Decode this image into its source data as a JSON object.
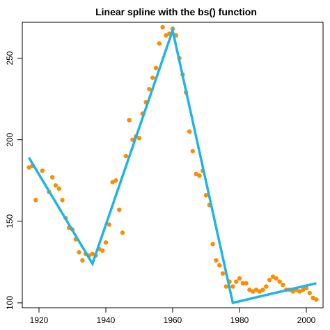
{
  "chart_data": {
    "type": "scatter",
    "title": "Linear spline with the bs() function",
    "xlabel": "",
    "ylabel": "",
    "xlim": [
      1915,
      2005
    ],
    "ylim": [
      97,
      272
    ],
    "x_ticks": [
      1920,
      1940,
      1960,
      1980,
      2000
    ],
    "y_ticks": [
      100,
      150,
      200,
      250
    ],
    "grid": false,
    "series": [
      {
        "kind": "points",
        "color": "#FF8C00",
        "points": [
          [
            1917,
            183
          ],
          [
            1918,
            184
          ],
          [
            1919,
            163
          ],
          [
            1921,
            181
          ],
          [
            1923,
            168
          ],
          [
            1924,
            177
          ],
          [
            1925,
            172
          ],
          [
            1926,
            170
          ],
          [
            1927,
            163
          ],
          [
            1928,
            152
          ],
          [
            1929,
            146
          ],
          [
            1930,
            145
          ],
          [
            1931,
            139
          ],
          [
            1932,
            131
          ],
          [
            1933,
            126
          ],
          [
            1934,
            130
          ],
          [
            1935,
            129
          ],
          [
            1936,
            130
          ],
          [
            1937,
            129
          ],
          [
            1938,
            133
          ],
          [
            1939,
            132
          ],
          [
            1940,
            137
          ],
          [
            1941,
            148
          ],
          [
            1942,
            174
          ],
          [
            1943,
            175
          ],
          [
            1944,
            157
          ],
          [
            1945,
            143
          ],
          [
            1946,
            190
          ],
          [
            1947,
            212
          ],
          [
            1948,
            200
          ],
          [
            1949,
            202
          ],
          [
            1950,
            201
          ],
          [
            1951,
            216
          ],
          [
            1952,
            223
          ],
          [
            1953,
            231
          ],
          [
            1954,
            238
          ],
          [
            1955,
            244
          ],
          [
            1956,
            259
          ],
          [
            1957,
            269
          ],
          [
            1958,
            264
          ],
          [
            1959,
            265
          ],
          [
            1960,
            268
          ],
          [
            1961,
            264
          ],
          [
            1962,
            250
          ],
          [
            1963,
            240
          ],
          [
            1964,
            229
          ],
          [
            1965,
            205
          ],
          [
            1966,
            193
          ],
          [
            1967,
            179
          ],
          [
            1968,
            178
          ],
          [
            1969,
            181
          ],
          [
            1970,
            166
          ],
          [
            1971,
            160
          ],
          [
            1972,
            136
          ],
          [
            1973,
            126
          ],
          [
            1974,
            123
          ],
          [
            1975,
            118
          ],
          [
            1976,
            110
          ],
          [
            1977,
            113
          ],
          [
            1978,
            110
          ],
          [
            1979,
            113
          ],
          [
            1980,
            115
          ],
          [
            1981,
            112
          ],
          [
            1982,
            112
          ],
          [
            1983,
            108
          ],
          [
            1984,
            107
          ],
          [
            1985,
            108
          ],
          [
            1986,
            107
          ],
          [
            1987,
            108
          ],
          [
            1988,
            110
          ],
          [
            1989,
            114
          ],
          [
            1990,
            116
          ],
          [
            1991,
            115
          ],
          [
            1992,
            113
          ],
          [
            1993,
            111
          ],
          [
            1994,
            108
          ],
          [
            1995,
            108
          ],
          [
            1996,
            107
          ],
          [
            1997,
            108
          ],
          [
            1998,
            107
          ],
          [
            1999,
            108
          ],
          [
            2000,
            109
          ],
          [
            2001,
            106
          ],
          [
            2002,
            103
          ],
          [
            2003,
            102
          ]
        ]
      },
      {
        "kind": "line",
        "color": "#1EB4E8",
        "points": [
          [
            1917,
            189
          ],
          [
            1936,
            124
          ],
          [
            1960,
            267
          ],
          [
            1978,
            100
          ],
          [
            2003,
            112
          ]
        ]
      }
    ]
  }
}
